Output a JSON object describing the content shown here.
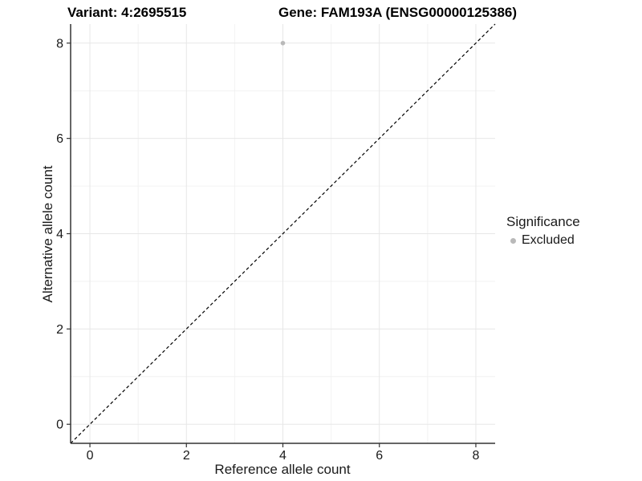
{
  "chart_data": {
    "type": "scatter",
    "titles": {
      "left": "Variant: 4:2695515",
      "right": "Gene: FAM193A (ENSG00000125386)"
    },
    "xlabel": "Reference allele count",
    "ylabel": "Alternative allele count",
    "xlim": [
      -0.4,
      8.4
    ],
    "ylim": [
      -0.4,
      8.4
    ],
    "xticks": [
      0,
      2,
      4,
      6,
      8
    ],
    "yticks": [
      0,
      2,
      4,
      6,
      8
    ],
    "x_minor_ticks": [
      1,
      3,
      5,
      7
    ],
    "y_minor_ticks": [
      1,
      3,
      5,
      7
    ],
    "grid": true,
    "points": [
      {
        "x": 4,
        "y": 8,
        "series": "Excluded"
      }
    ],
    "reference_line": {
      "slope": 1,
      "intercept": 0,
      "linetype": "dashed",
      "color": "#000000"
    },
    "legend": {
      "title": "Significance",
      "position": "right",
      "entries": [
        {
          "label": "Excluded",
          "color": "#b9b9b9"
        }
      ]
    },
    "colors": {
      "point": "#b9b9b9",
      "axis_line": "#333333",
      "tick_label": "#1a1a1a",
      "grid_major": "#e7e7e7",
      "grid_minor": "#f2f2f2"
    }
  }
}
